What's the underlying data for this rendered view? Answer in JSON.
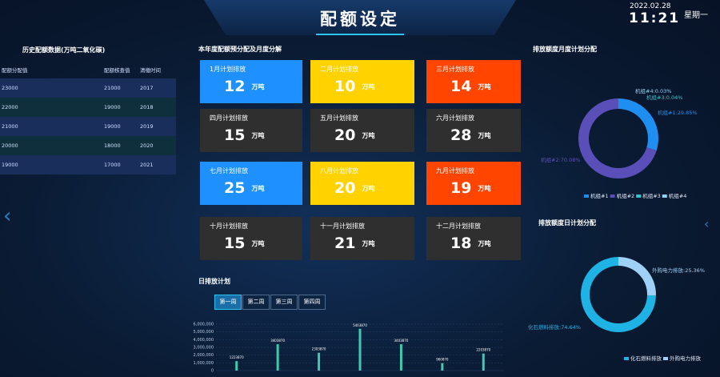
{
  "header": {
    "title": "配额设定",
    "date": "2022.02.28",
    "time": "11:21",
    "weekday": "星期一"
  },
  "history": {
    "title": "历史配额数据(万吨二氧化碳)",
    "columns": [
      "配额分配值",
      "配额核查值",
      "清缴时间"
    ],
    "rows": [
      [
        23000,
        21000,
        2017
      ],
      [
        22000,
        19000,
        2018
      ],
      [
        21000,
        19000,
        2019
      ],
      [
        20000,
        18000,
        2020
      ],
      [
        19000,
        17000,
        2021
      ]
    ]
  },
  "monthly": {
    "title": "本年度配额预分配及月度分解",
    "unit": "万吨",
    "months": [
      {
        "label": "1月计划排放",
        "value": 12,
        "color": "#1e90ff"
      },
      {
        "label": "二月计划排放",
        "value": 10,
        "color": "#ffd200"
      },
      {
        "label": "三月计划排放",
        "value": 14,
        "color": "#ff4500"
      },
      {
        "label": "四月计划排放",
        "value": 15,
        "color": "#2f2f2f"
      },
      {
        "label": "五月计划排放",
        "value": 20,
        "color": "#2f2f2f"
      },
      {
        "label": "六月计划排放",
        "value": 28,
        "color": "#2f2f2f"
      },
      {
        "label": "七月计划排放",
        "value": 25,
        "color": "#1e90ff"
      },
      {
        "label": "八月计划排放",
        "value": 20,
        "color": "#ffd200"
      },
      {
        "label": "九月计划排放",
        "value": 19,
        "color": "#ff4500"
      },
      {
        "label": "十月计划排放",
        "value": 15,
        "color": "#2f2f2f"
      },
      {
        "label": "十一月计划排放",
        "value": 21,
        "color": "#2f2f2f"
      },
      {
        "label": "十二月计划排放",
        "value": 18,
        "color": "#2f2f2f"
      }
    ]
  },
  "daily": {
    "title": "日排放计划",
    "tabs": [
      "第一周",
      "第二周",
      "第三周",
      "第四周"
    ],
    "chart_data": {
      "type": "bar",
      "categories": [
        null,
        null,
        null,
        null,
        null,
        null,
        null
      ],
      "values": [
        1223870,
        3403870,
        2303870,
        5403870,
        3403870,
        960870,
        2203870
      ],
      "color": "#3ec9b0",
      "ylim": [
        0,
        6000000
      ],
      "yticks": [
        0,
        {
          "value": 1000000,
          "label": "1,000,000"
        },
        {
          "value": 2000000,
          "label": "2,000,000"
        },
        {
          "value": 3000000,
          "label": "3,000,000"
        },
        {
          "value": 4000000,
          "label": "4,000,000"
        },
        {
          "value": 5000000,
          "label": "5,000,000"
        },
        {
          "value": 6000000,
          "label": "6,000,000"
        }
      ]
    }
  },
  "pies": [
    {
      "type": "pie",
      "title": "排放额度月度计划分配",
      "series": [
        {
          "name": "机组#1",
          "color": "#1e8ff0",
          "values": [
            29.85
          ]
        },
        {
          "name": "机组#2",
          "color": "#5a4fb8",
          "values": [
            70.08
          ]
        },
        {
          "name": "机组#3",
          "color": "#2ec7c9",
          "values": [
            0.04
          ]
        },
        {
          "name": "机组#4",
          "color": "#8fd3f5",
          "values": [
            0.03
          ]
        }
      ],
      "value_labels": [
        "机组#1:29.85%",
        "机组#2:70.08%",
        "机组#3:0.04%",
        "机组#4:0.03%"
      ]
    },
    {
      "type": "pie",
      "title": "排放额度日计划分配",
      "series": [
        {
          "name": "化石燃料排放",
          "color": "#1fb2e4",
          "values": [
            74.64
          ]
        },
        {
          "name": "外购电力排放",
          "color": "#9fd0f5",
          "values": [
            25.36
          ]
        }
      ],
      "value_labels": [
        "化石燃料排放:74.64%",
        "外购电力排放:25.36%"
      ]
    }
  ]
}
